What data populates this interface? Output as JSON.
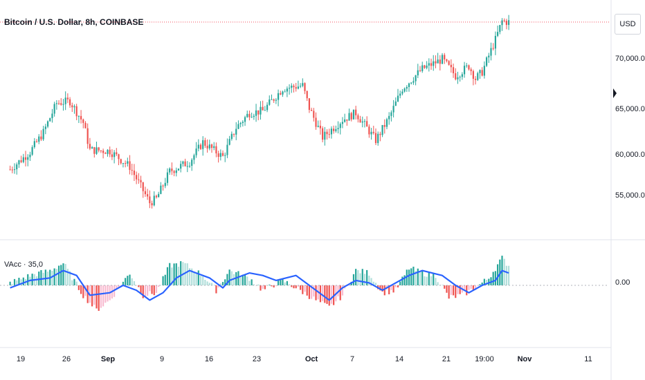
{
  "header": {
    "title": "Bitcoin / U.S. Dollar, 8h, COINBASE"
  },
  "indicator": {
    "label": "VAcc · 35,0"
  },
  "price_scale": {
    "currency": "USD"
  },
  "colors": {
    "up": "#26a69a",
    "down": "#ef5350",
    "accel_up_light": "#b2dfdb",
    "accel_down_light": "#f8bbd0",
    "vacc_line": "#2962ff",
    "price_line": "#f23645"
  },
  "chart_data": [
    {
      "type": "candlestick",
      "title": "Bitcoin / U.S. Dollar, 8h, COINBASE",
      "x_ticks": [
        "19",
        "26",
        "Sep",
        "9",
        "16",
        "23",
        "Oct",
        "7",
        "14",
        "21",
        "19:00",
        "Nov",
        "11"
      ],
      "y_ticks": [
        "70,000.00",
        "65,000.00",
        "60,000.00",
        "55,000.00"
      ],
      "ylim": [
        50500,
        73500
      ],
      "current_price_line": 72300,
      "close_path": [
        {
          "x": "Aug 16",
          "y": 57200
        },
        {
          "x": "Aug 19",
          "y": 59000
        },
        {
          "x": "Aug 21",
          "y": 61000
        },
        {
          "x": "Aug 23",
          "y": 64000
        },
        {
          "x": "Aug 25",
          "y": 64200
        },
        {
          "x": "Aug 27",
          "y": 62000
        },
        {
          "x": "Aug 28",
          "y": 59200
        },
        {
          "x": "Aug 31",
          "y": 59100
        },
        {
          "x": "Sep 3",
          "y": 57500
        },
        {
          "x": "Sep 6",
          "y": 53800
        },
        {
          "x": "Sep 7",
          "y": 54200
        },
        {
          "x": "Sep 9",
          "y": 57000
        },
        {
          "x": "Sep 12",
          "y": 58000
        },
        {
          "x": "Sep 14",
          "y": 60000
        },
        {
          "x": "Sep 17",
          "y": 58500
        },
        {
          "x": "Sep 19",
          "y": 61500
        },
        {
          "x": "Sep 21",
          "y": 63000
        },
        {
          "x": "Sep 23",
          "y": 63200
        },
        {
          "x": "Sep 26",
          "y": 65500
        },
        {
          "x": "Sep 29",
          "y": 65800
        },
        {
          "x": "Sep 30",
          "y": 63500
        },
        {
          "x": "Oct 2",
          "y": 60500
        },
        {
          "x": "Oct 5",
          "y": 62300
        },
        {
          "x": "Oct 7",
          "y": 63000
        },
        {
          "x": "Oct 10",
          "y": 60200
        },
        {
          "x": "Oct 12",
          "y": 62500
        },
        {
          "x": "Oct 14",
          "y": 65500
        },
        {
          "x": "Oct 17",
          "y": 67500
        },
        {
          "x": "Oct 20",
          "y": 68500
        },
        {
          "x": "Oct 22",
          "y": 66800
        },
        {
          "x": "Oct 24",
          "y": 67800
        },
        {
          "x": "Oct 25",
          "y": 66500
        },
        {
          "x": "Oct 26",
          "y": 67200
        },
        {
          "x": "Oct 28",
          "y": 70500
        },
        {
          "x": "Oct 29",
          "y": 72400
        },
        {
          "x": "Oct 30",
          "y": 72300
        }
      ]
    },
    {
      "type": "bar+line",
      "title": "VAcc · 35,0",
      "y_ticks": [
        "0.00"
      ],
      "zero_line": 0,
      "histogram_path": [
        {
          "x": "Aug 16",
          "y": 0.1
        },
        {
          "x": "Aug 19",
          "y": 0.4
        },
        {
          "x": "Aug 22",
          "y": 0.6
        },
        {
          "x": "Aug 24",
          "y": 0.9
        },
        {
          "x": "Aug 27",
          "y": -0.4
        },
        {
          "x": "Aug 29",
          "y": -1.0
        },
        {
          "x": "Aug 31",
          "y": -0.6
        },
        {
          "x": "Sep 3",
          "y": 0.5
        },
        {
          "x": "Sep 5",
          "y": -0.4
        },
        {
          "x": "Sep 7",
          "y": -0.3
        },
        {
          "x": "Sep 9",
          "y": 0.8
        },
        {
          "x": "Sep 11",
          "y": 0.9
        },
        {
          "x": "Sep 14",
          "y": 0.4
        },
        {
          "x": "Sep 16",
          "y": -0.2
        },
        {
          "x": "Sep 18",
          "y": 0.6
        },
        {
          "x": "Sep 21",
          "y": 0.3
        },
        {
          "x": "Sep 23",
          "y": -0.2
        },
        {
          "x": "Sep 26",
          "y": 0.2
        },
        {
          "x": "Sep 28",
          "y": -0.1
        },
        {
          "x": "Oct 1",
          "y": -0.6
        },
        {
          "x": "Oct 3",
          "y": -0.9
        },
        {
          "x": "Oct 5",
          "y": -0.4
        },
        {
          "x": "Oct 7",
          "y": 0.6
        },
        {
          "x": "Oct 9",
          "y": 0.5
        },
        {
          "x": "Oct 11",
          "y": -0.3
        },
        {
          "x": "Oct 13",
          "y": -0.2
        },
        {
          "x": "Oct 15",
          "y": 0.7
        },
        {
          "x": "Oct 17",
          "y": 0.5
        },
        {
          "x": "Oct 19",
          "y": 0.4
        },
        {
          "x": "Oct 21",
          "y": -0.5
        },
        {
          "x": "Oct 23",
          "y": -0.4
        },
        {
          "x": "Oct 25",
          "y": -0.1
        },
        {
          "x": "Oct 27",
          "y": 0.3
        },
        {
          "x": "Oct 29",
          "y": 1.1
        },
        {
          "x": "Oct 30",
          "y": 0.8
        }
      ],
      "vacc_line_path": [
        {
          "x": "Aug 16",
          "y": -0.1
        },
        {
          "x": "Aug 19",
          "y": 0.2
        },
        {
          "x": "Aug 22",
          "y": 0.3
        },
        {
          "x": "Aug 24",
          "y": 0.6
        },
        {
          "x": "Aug 26",
          "y": 0.4
        },
        {
          "x": "Aug 28",
          "y": -0.4
        },
        {
          "x": "Aug 31",
          "y": -0.3
        },
        {
          "x": "Sep 2",
          "y": 0.0
        },
        {
          "x": "Sep 4",
          "y": -0.2
        },
        {
          "x": "Sep 6",
          "y": -0.6
        },
        {
          "x": "Sep 8",
          "y": -0.3
        },
        {
          "x": "Sep 10",
          "y": 0.3
        },
        {
          "x": "Sep 12",
          "y": 0.6
        },
        {
          "x": "Sep 15",
          "y": 0.3
        },
        {
          "x": "Sep 17",
          "y": -0.1
        },
        {
          "x": "Sep 18",
          "y": 0.2
        },
        {
          "x": "Sep 21",
          "y": 0.5
        },
        {
          "x": "Sep 23",
          "y": 0.4
        },
        {
          "x": "Sep 25",
          "y": 0.2
        },
        {
          "x": "Sep 28",
          "y": 0.4
        },
        {
          "x": "Sep 30",
          "y": 0.0
        },
        {
          "x": "Oct 3",
          "y": -0.6
        },
        {
          "x": "Oct 5",
          "y": -0.1
        },
        {
          "x": "Oct 7",
          "y": 0.2
        },
        {
          "x": "Oct 9",
          "y": 0.1
        },
        {
          "x": "Oct 11",
          "y": -0.2
        },
        {
          "x": "Oct 13",
          "y": 0.1
        },
        {
          "x": "Oct 15",
          "y": 0.4
        },
        {
          "x": "Oct 17",
          "y": 0.6
        },
        {
          "x": "Oct 20",
          "y": 0.4
        },
        {
          "x": "Oct 22",
          "y": 0.0
        },
        {
          "x": "Oct 24",
          "y": -0.3
        },
        {
          "x": "Oct 26",
          "y": 0.0
        },
        {
          "x": "Oct 28",
          "y": 0.2
        },
        {
          "x": "Oct 29",
          "y": 0.6
        },
        {
          "x": "Oct 30",
          "y": 0.5
        }
      ]
    }
  ]
}
